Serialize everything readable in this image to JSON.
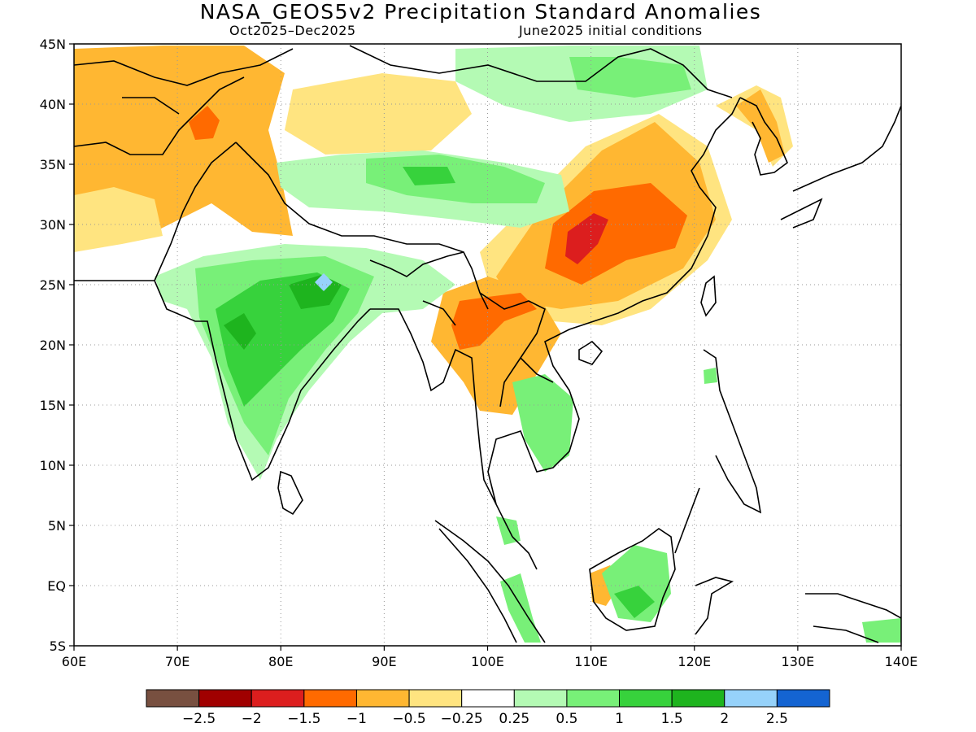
{
  "title": "NASA_GEOS5v2 Precipitation Standard Anomalies",
  "subtitle_left": "Oct2025–Dec2025",
  "subtitle_right": "June2025 initial conditions",
  "map": {
    "lat_labels": [
      "45N",
      "40N",
      "35N",
      "30N",
      "25N",
      "20N",
      "15N",
      "10N",
      "5N",
      "EQ",
      "5S"
    ],
    "lon_labels": [
      "60E",
      "70E",
      "80E",
      "90E",
      "100E",
      "110E",
      "120E",
      "130E",
      "140E"
    ],
    "lat_values": [
      45,
      40,
      35,
      30,
      25,
      20,
      15,
      10,
      5,
      0,
      -5
    ],
    "lon_values": [
      60,
      70,
      80,
      90,
      100,
      110,
      120,
      130,
      140
    ],
    "bounds": {
      "lon_min": 60,
      "lon_max": 140,
      "lat_min": -5,
      "lat_max": 45
    },
    "gridlines": "dotted",
    "colors": {
      "land_outline": "#000000",
      "dry_strong": "#ff6a00",
      "dry_moderate": "#ffb732",
      "dry_weak": "#ffe480",
      "wet_weak": "#b4fab4",
      "wet_moderate": "#78f078",
      "wet_strong": "#37d23c",
      "wet_very_strong": "#1eb41e",
      "wet_extreme": "#96d2fa"
    }
  },
  "colorbar": {
    "colors": [
      "#785040",
      "#a00000",
      "#dc1e1e",
      "#ff6a00",
      "#ffb732",
      "#ffe480",
      "#ffffff",
      "#b4fab4",
      "#78f078",
      "#37d23c",
      "#1eb41e",
      "#96d2fa",
      "#1464d2"
    ],
    "labels": [
      "−2.5",
      "−2",
      "−1.5",
      "−1",
      "−0.5",
      "−0.25",
      "0.25",
      "0.5",
      "1",
      "1.5",
      "2",
      "2.5"
    ],
    "label_values": [
      -2.5,
      -2,
      -1.5,
      -1,
      -0.5,
      -0.25,
      0.25,
      0.5,
      1,
      1.5,
      2,
      2.5
    ]
  }
}
